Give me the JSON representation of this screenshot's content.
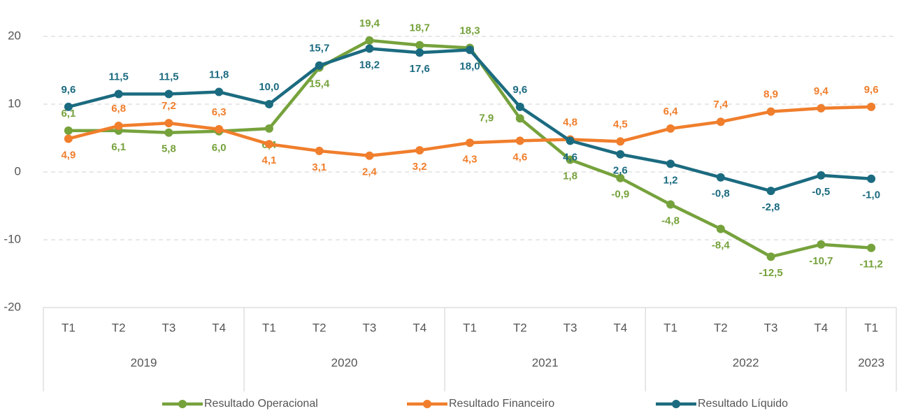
{
  "chart_data": {
    "type": "line",
    "categories": [
      "T1",
      "T2",
      "T3",
      "T4",
      "T1",
      "T2",
      "T3",
      "T4",
      "T1",
      "T2",
      "T3",
      "T4",
      "T1",
      "T2",
      "T3",
      "T4",
      "T1"
    ],
    "groups": [
      {
        "name": "2019",
        "size": 4
      },
      {
        "name": "2020",
        "size": 4
      },
      {
        "name": "2021",
        "size": 4
      },
      {
        "name": "2022",
        "size": 4
      },
      {
        "name": "2023",
        "size": 1
      }
    ],
    "ylim": [
      -20,
      20
    ],
    "yticks": [
      -20,
      -10,
      0,
      10,
      20
    ],
    "grid": true,
    "legend": "bottom",
    "series": [
      {
        "name": "Resultado Operacional",
        "color": "#76a23c",
        "values": [
          6.1,
          6.1,
          5.8,
          6.0,
          6.4,
          15.4,
          19.4,
          18.7,
          18.3,
          7.9,
          1.8,
          -0.9,
          -4.8,
          -8.4,
          -12.5,
          -10.7,
          -11.2
        ],
        "value_labels": [
          "6,1",
          "6,1",
          "5,8",
          "6,0",
          "6,4",
          "15,4",
          "19,4",
          "18,7",
          "18,3",
          "7,9",
          "1,8",
          "-0,9",
          "-4,8",
          "-8,4",
          "-12,5",
          "-10,7",
          "-11,2"
        ]
      },
      {
        "name": "Resultado Financeiro",
        "color": "#f07e2c",
        "values": [
          4.9,
          6.8,
          7.2,
          6.3,
          4.1,
          3.1,
          2.4,
          3.2,
          4.3,
          4.6,
          4.8,
          4.5,
          6.4,
          7.4,
          8.9,
          9.4,
          9.6
        ],
        "value_labels": [
          "4,9",
          "6,8",
          "7,2",
          "6,3",
          "4,1",
          "3,1",
          "2,4",
          "3,2",
          "4,3",
          "4,6",
          "4,8",
          "4,5",
          "6,4",
          "7,4",
          "8,9",
          "9,4",
          "9,6"
        ]
      },
      {
        "name": "Resultado Líquido",
        "color": "#1b6b80",
        "values": [
          9.6,
          11.5,
          11.5,
          11.8,
          10.0,
          15.7,
          18.2,
          17.6,
          18.0,
          9.6,
          4.6,
          2.6,
          1.2,
          -0.8,
          -2.8,
          -0.5,
          -1.0
        ],
        "value_labels": [
          "9,6",
          "11,5",
          "11,5",
          "11,8",
          "10,0",
          "15,7",
          "18,2",
          "17,6",
          "18,0",
          "9,6",
          "4,6",
          "2,6",
          "1,2",
          "-0,8",
          "-2,8",
          "-0,5",
          "-1,0"
        ]
      }
    ]
  }
}
